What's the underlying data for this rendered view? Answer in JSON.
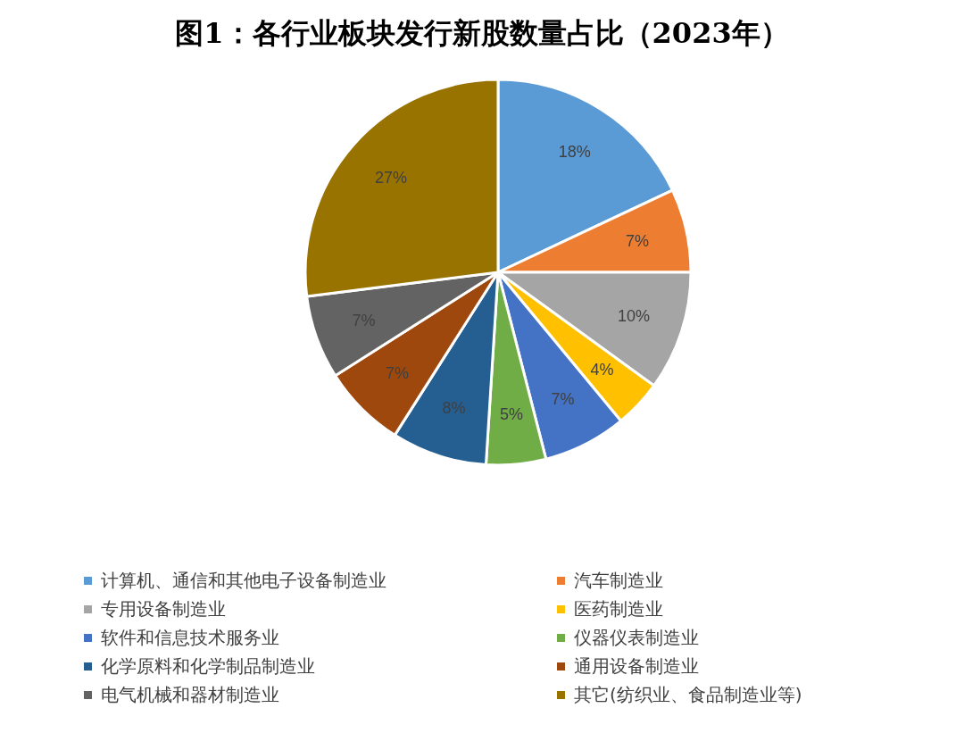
{
  "chart_data": {
    "type": "pie",
    "title": "图1：各行业板块发行新股数量占比（2023年）",
    "categories": [
      "计算机、通信和其他电子设备制造业",
      "汽车制造业",
      "专用设备制造业",
      "医药制造业",
      "软件和信息技术服务业",
      "仪器仪表制造业",
      "化学原料和化学制品制造业",
      "通用设备制造业",
      "电气机械和器材制造业",
      "其它(纺织业、食品制造业等)"
    ],
    "values": [
      18,
      7,
      10,
      4,
      7,
      5,
      8,
      7,
      7,
      27
    ],
    "value_labels": [
      "18%",
      "7%",
      "10%",
      "4%",
      "7%",
      "5%",
      "8%",
      "7%",
      "7%",
      "27%"
    ],
    "colors": [
      "#5b9bd5",
      "#ed7d31",
      "#a5a5a5",
      "#ffc000",
      "#4472c4",
      "#70ad47",
      "#255e91",
      "#9e480e",
      "#636363",
      "#997300"
    ],
    "legend": "bottom"
  }
}
